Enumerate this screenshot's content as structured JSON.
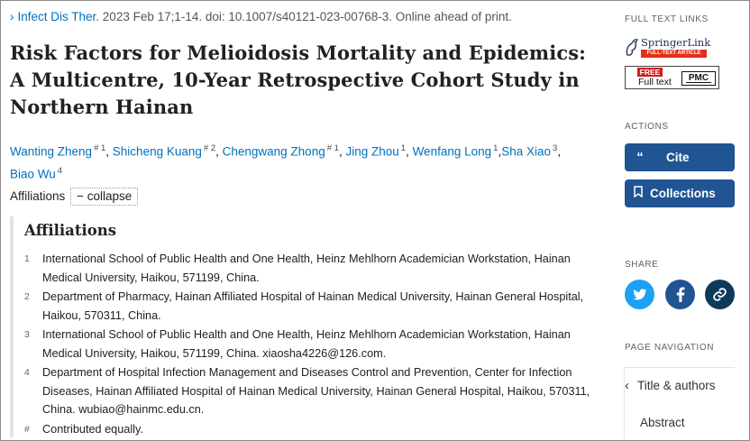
{
  "citation": {
    "journal": "Infect Dis Ther.",
    "details": " 2023 Feb 17;1-14. doi: 10.1007/s40121-023-00768-3. Online ahead of print."
  },
  "article": {
    "title": "Risk Factors for Melioidosis Mortality and Epidemics: A Multicentre, 10-Year Retrospective Cohort Study in Northern Hainan"
  },
  "authors": [
    {
      "name": "Wanting Zheng",
      "sup": "# 1",
      "sep": ", "
    },
    {
      "name": "Shicheng Kuang",
      "sup": "# 2",
      "sep": ", "
    },
    {
      "name": "Chengwang Zhong",
      "sup": "# 1",
      "sep": ", "
    },
    {
      "name": "Jing Zhou",
      "sup": "1",
      "sep": ", "
    },
    {
      "name": "Wenfang Long",
      "sup": "1",
      "sep": ","
    },
    {
      "name": "Sha Xiao",
      "sup": "3",
      "sep": ", "
    },
    {
      "name": "Biao Wu",
      "sup": "4",
      "sep": ""
    }
  ],
  "affiliations_toggle": {
    "label": "Affiliations",
    "action": "− collapse"
  },
  "affiliations": {
    "heading": "Affiliations",
    "items": [
      {
        "num": "1",
        "text": "International School of Public Health and One Health, Heinz Mehlhorn Academician Workstation, Hainan Medical University, Haikou, 571199, China."
      },
      {
        "num": "2",
        "text": "Department of Pharmacy, Hainan Affiliated Hospital of Hainan Medical University, Hainan General Hospital, Haikou, 570311, China."
      },
      {
        "num": "3",
        "text": "International School of Public Health and One Health, Heinz Mehlhorn Academician Workstation, Hainan Medical University, Haikou, 571199, China. xiaosha4226@126.com."
      },
      {
        "num": "4",
        "text": "Department of Hospital Infection Management and Diseases Control and Prevention, Center for Infection Diseases, Hainan Affiliated Hospital of Hainan Medical University, Hainan General Hospital, Haikou, 570311, China. wubiao@hainmc.edu.cn."
      },
      {
        "num": "#",
        "text": "Contributed equally."
      }
    ]
  },
  "sidebar": {
    "full_text_links_label": "FULL TEXT LINKS",
    "springer_name": "SpringerLink",
    "springer_tag": "FULL-TEXT ARTICLE",
    "pmc_free": "FREE",
    "pmc_fulltext": "Full text",
    "pmc_label": "PMC",
    "actions_label": "ACTIONS",
    "cite_label": "Cite",
    "collections_label": "Collections",
    "share_label": "SHARE",
    "page_nav_label": "PAGE NAVIGATION",
    "nav_items": [
      "Title & authors",
      "Abstract"
    ]
  },
  "colors": {
    "link": "#0071bc",
    "button": "#205493",
    "twitter": "#1da1f2",
    "facebook": "#205493",
    "permalink": "#0e3a5a"
  },
  "icons": [
    "chevron-right-icon",
    "quote-icon",
    "bookmark-icon",
    "twitter-icon",
    "facebook-icon",
    "link-icon",
    "chevron-left-icon"
  ]
}
